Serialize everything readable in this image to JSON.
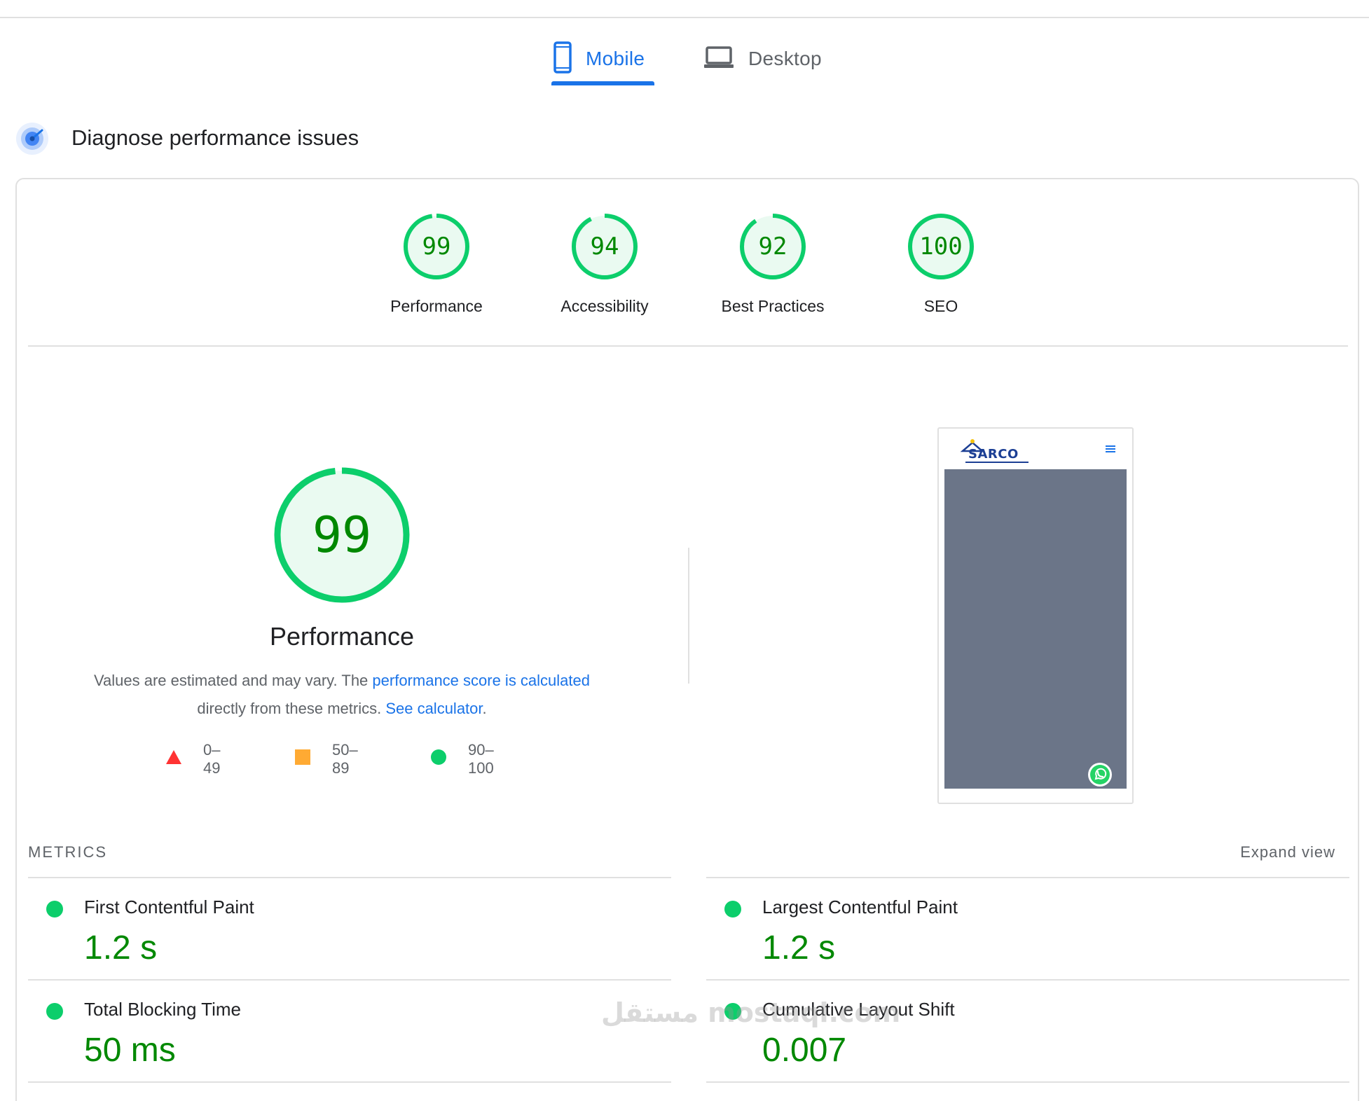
{
  "tabs": [
    {
      "label": "Mobile",
      "icon": "mobile-icon",
      "active": true
    },
    {
      "label": "Desktop",
      "icon": "laptop-icon",
      "active": false
    }
  ],
  "diagnose": {
    "title": "Diagnose performance issues",
    "icon": "gauge-icon"
  },
  "scores": [
    {
      "value": "99",
      "label": "Performance",
      "fraction": 0.99
    },
    {
      "value": "94",
      "label": "Accessibility",
      "fraction": 0.94
    },
    {
      "value": "92",
      "label": "Best Practices",
      "fraction": 0.92
    },
    {
      "value": "100",
      "label": "SEO",
      "fraction": 1.0
    }
  ],
  "performance": {
    "score": "99",
    "fraction": 0.99,
    "title": "Performance",
    "desc_prefix": "Values are estimated and may vary. The ",
    "desc_link1": "performance score is calculated",
    "desc_middle": " directly from these metrics. ",
    "desc_link2": "See calculator",
    "desc_suffix": "."
  },
  "legend": [
    {
      "range": "0–49",
      "icon": "red-triangle-icon",
      "color": "#ff3333"
    },
    {
      "range": "50–89",
      "icon": "orange-square-icon",
      "color": "#ffaa33"
    },
    {
      "range": "90–100",
      "icon": "green-circle-icon",
      "color": "#0cce6b"
    }
  ],
  "thumbnail": {
    "logo_text": "SARCO"
  },
  "metrics": {
    "heading": "METRICS",
    "expand": "Expand view",
    "items": [
      {
        "label": "First Contentful Paint",
        "value": "1.2 s"
      },
      {
        "label": "Largest Contentful Paint",
        "value": "1.2 s"
      },
      {
        "label": "Total Blocking Time",
        "value": "50 ms"
      },
      {
        "label": "Cumulative Layout Shift",
        "value": "0.007"
      }
    ]
  },
  "watermark": "مستقل mostaql.com",
  "colors": {
    "accent": "#1a73e8",
    "pass": "#0cce6b",
    "pass_text": "#008800"
  }
}
